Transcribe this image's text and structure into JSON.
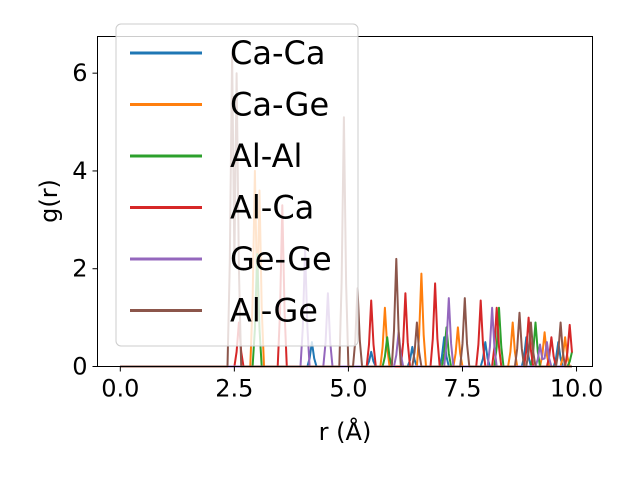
{
  "chart_data": {
    "type": "line",
    "xlabel": "r (Å)",
    "ylabel": "g(r)",
    "xlim": [
      -0.5,
      10.35
    ],
    "ylim": [
      0,
      6.75
    ],
    "xticks": [
      0.0,
      2.5,
      5.0,
      7.5,
      10.0
    ],
    "xtick_labels": [
      "0.0",
      "2.5",
      "5.0",
      "7.5",
      "10.0"
    ],
    "yticks": [
      0,
      2,
      4,
      6
    ],
    "ytick_labels": [
      "0",
      "2",
      "4",
      "6"
    ],
    "grid": false,
    "legend_position": "top-left",
    "series": [
      {
        "name": "Ca-Ca",
        "color": "#1f77b4",
        "peaks": [
          [
            4.2,
            0.5
          ],
          [
            5.5,
            0.3
          ],
          [
            6.4,
            0.4
          ],
          [
            7.1,
            0.6
          ],
          [
            8.0,
            0.5
          ],
          [
            8.9,
            0.6
          ],
          [
            9.6,
            0.5
          ]
        ]
      },
      {
        "name": "Ca-Ge",
        "color": "#ff7f0e",
        "peaks": [
          [
            2.95,
            4.0
          ],
          [
            3.05,
            3.6
          ],
          [
            5.8,
            1.2
          ],
          [
            6.6,
            1.9
          ],
          [
            7.4,
            0.8
          ],
          [
            8.6,
            0.9
          ],
          [
            9.3,
            0.7
          ],
          [
            9.75,
            0.6
          ]
        ]
      },
      {
        "name": "Al-Al",
        "color": "#2ca02c",
        "peaks": [
          [
            3.0,
            2.3
          ],
          [
            5.85,
            0.6
          ],
          [
            7.15,
            0.8
          ],
          [
            8.3,
            1.2
          ],
          [
            9.1,
            0.9
          ],
          [
            9.9,
            0.3
          ]
        ]
      },
      {
        "name": "Al-Ca",
        "color": "#d62728",
        "peaks": [
          [
            2.6,
            0.9
          ],
          [
            3.55,
            3.3
          ],
          [
            5.5,
            1.35
          ],
          [
            6.25,
            1.5
          ],
          [
            6.9,
            1.7
          ],
          [
            7.9,
            1.35
          ],
          [
            8.25,
            1.2
          ],
          [
            8.95,
            1.0
          ],
          [
            9.45,
            0.6
          ],
          [
            9.85,
            0.85
          ]
        ]
      },
      {
        "name": "Ge-Ge",
        "color": "#9467bd",
        "peaks": [
          [
            4.05,
            2.4
          ],
          [
            4.55,
            1.5
          ],
          [
            6.1,
            0.7
          ],
          [
            7.2,
            1.4
          ],
          [
            8.15,
            1.2
          ],
          [
            9.2,
            0.45
          ],
          [
            9.35,
            0.5
          ]
        ]
      },
      {
        "name": "Al-Ge",
        "color": "#8c564b",
        "peaks": [
          [
            2.45,
            6.4
          ],
          [
            2.55,
            6.0
          ],
          [
            4.9,
            5.1
          ],
          [
            5.2,
            1.6
          ],
          [
            6.05,
            2.2
          ],
          [
            6.5,
            0.9
          ],
          [
            7.55,
            1.4
          ],
          [
            8.75,
            1.1
          ],
          [
            9.0,
            0.9
          ],
          [
            9.65,
            0.9
          ]
        ]
      }
    ]
  }
}
